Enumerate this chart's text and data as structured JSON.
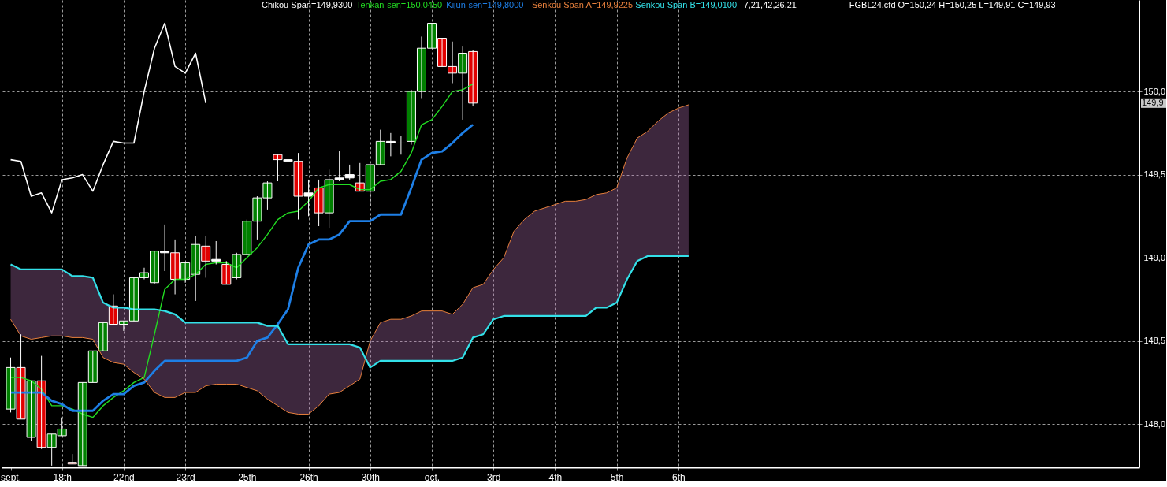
{
  "chart_data": {
    "type": "candlestick",
    "categories": [
      "sept.",
      null,
      null,
      null,
      null,
      "18th",
      null,
      null,
      null,
      null,
      null,
      "22nd",
      null,
      null,
      null,
      null,
      null,
      "23rd",
      null,
      null,
      null,
      null,
      null,
      "25th",
      null,
      null,
      null,
      null,
      null,
      "26th",
      null,
      null,
      null,
      null,
      null,
      "30th",
      null,
      null,
      null,
      null,
      null,
      "oct.",
      null,
      null,
      null,
      null,
      null,
      "3rd",
      null,
      null,
      null,
      null,
      null,
      "4th",
      null,
      null,
      null,
      null,
      null,
      "5th",
      null,
      null,
      null,
      null,
      null,
      "6th",
      null,
      null,
      null,
      null,
      null,
      null,
      null,
      null,
      null,
      null,
      null,
      null,
      null,
      null,
      null,
      null,
      null,
      null,
      null,
      null,
      null,
      null,
      null,
      null,
      null,
      null,
      null,
      null,
      null,
      null,
      null,
      null,
      null,
      null,
      null,
      null,
      null,
      null,
      null,
      null,
      null,
      null,
      null,
      null
    ],
    "ohlc": [
      [
        148.09,
        148.4,
        148.07,
        148.34
      ],
      [
        148.34,
        148.54,
        148.03,
        148.03
      ],
      [
        147.92,
        148.26,
        147.9,
        148.26
      ],
      [
        148.26,
        148.41,
        147.85,
        147.86
      ],
      [
        147.86,
        147.94,
        147.75,
        147.94
      ],
      [
        147.93,
        148.04,
        147.93,
        147.97
      ],
      [
        147.77,
        147.82,
        147.76,
        147.76
      ],
      [
        147.75,
        148.25,
        147.75,
        148.25
      ],
      [
        148.25,
        148.44,
        148.25,
        148.44
      ],
      [
        148.44,
        148.61,
        148.44,
        148.61
      ],
      [
        148.71,
        148.78,
        148.6,
        148.6
      ],
      [
        148.6,
        148.62,
        148.56,
        148.62
      ],
      [
        148.62,
        148.88,
        148.62,
        148.88
      ],
      [
        148.88,
        148.94,
        148.87,
        148.91
      ],
      [
        148.85,
        149.04,
        148.84,
        149.04
      ],
      [
        149.04,
        149.2,
        148.92,
        149.03
      ],
      [
        149.03,
        149.11,
        148.78,
        148.87
      ],
      [
        148.87,
        148.97,
        148.85,
        148.97
      ],
      [
        148.9,
        149.13,
        148.74,
        149.08
      ],
      [
        149.07,
        149.13,
        148.88,
        148.98
      ],
      [
        148.98,
        149.1,
        148.96,
        148.99
      ],
      [
        148.96,
        148.98,
        148.84,
        148.84
      ],
      [
        148.88,
        149.03,
        148.87,
        149.02
      ],
      [
        149.02,
        149.23,
        149.02,
        149.22
      ],
      [
        149.22,
        149.37,
        149.11,
        149.36
      ],
      [
        149.36,
        149.46,
        149.29,
        149.45
      ],
      [
        149.62,
        149.62,
        149.46,
        149.59
      ],
      [
        149.59,
        149.69,
        149.46,
        149.58
      ],
      [
        149.58,
        149.63,
        149.23,
        149.37
      ],
      [
        149.37,
        149.47,
        149.25,
        149.39
      ],
      [
        149.42,
        149.47,
        149.19,
        149.27
      ],
      [
        149.27,
        149.53,
        149.18,
        149.47
      ],
      [
        149.47,
        149.64,
        149.46,
        149.48
      ],
      [
        149.48,
        149.56,
        149.47,
        149.5
      ],
      [
        149.45,
        149.57,
        149.4,
        149.4
      ],
      [
        149.4,
        149.56,
        149.31,
        149.56
      ],
      [
        149.56,
        149.77,
        149.56,
        149.7
      ],
      [
        149.7,
        149.75,
        149.61,
        149.69
      ],
      [
        149.69,
        149.73,
        149.62,
        149.69
      ],
      [
        149.7,
        150.01,
        149.68,
        150.0
      ],
      [
        150.0,
        150.33,
        149.96,
        150.26
      ],
      [
        150.26,
        150.41,
        150.26,
        150.41
      ],
      [
        150.32,
        150.32,
        150.15,
        150.15
      ],
      [
        150.15,
        150.3,
        150.05,
        150.11
      ],
      [
        150.11,
        150.27,
        149.83,
        150.23
      ],
      [
        150.24,
        150.25,
        149.91,
        149.93
      ],
      null,
      null,
      null,
      null,
      null,
      null,
      null,
      null,
      null,
      null,
      null,
      null,
      null,
      null,
      null,
      null,
      null,
      null,
      null,
      null,
      null,
      null,
      null,
      null,
      null,
      null,
      null,
      null,
      null,
      null,
      null,
      null,
      null,
      null,
      null,
      null,
      null,
      null,
      null,
      null,
      null,
      null,
      null,
      null,
      null,
      null,
      null,
      null,
      null,
      null,
      null,
      null,
      null,
      null,
      null,
      null,
      null,
      null,
      null,
      null,
      null,
      null,
      null,
      null
    ],
    "colors": [
      "#008000",
      "#e00000",
      "#008000",
      "#e00000",
      "#008000",
      "#008000",
      "#e00000",
      "#008000",
      "#008000",
      "#008000",
      "#e00000",
      "#008000",
      "#008000",
      "#008000",
      "#008000",
      "#ffffff",
      "#e00000",
      "#008000",
      "#008000",
      "#e00000",
      "#ffffff",
      "#e00000",
      "#008000",
      "#008000",
      "#008000",
      "#008000",
      "#e00000",
      "#ffffff",
      "#e00000",
      "#ffffff",
      "#e00000",
      "#008000",
      "#ffffff",
      "#ffffff",
      "#e00000",
      "#008000",
      "#008000",
      "#ffffff",
      "#ffffff",
      "#008000",
      "#008000",
      "#008000",
      "#e00000",
      "#e00000",
      "#008000",
      "#e00000",
      null,
      null,
      null,
      null,
      null,
      null,
      null,
      null,
      null,
      null,
      null,
      null,
      null,
      null,
      null,
      null,
      null,
      null,
      null,
      null,
      null,
      null,
      null,
      null,
      null,
      null,
      null,
      null,
      null,
      null,
      null,
      null,
      null,
      null,
      null,
      null,
      null,
      null,
      null,
      null,
      null,
      null,
      null,
      null,
      null,
      null,
      null,
      null,
      null,
      null,
      null,
      null,
      null,
      null,
      null,
      null,
      null,
      null,
      null,
      null,
      null,
      null,
      null,
      null
    ],
    "series": [
      {
        "name": "Chikou Span=149,9300",
        "type": "line",
        "color": "#ffffff",
        "values": [
          149.59,
          149.58,
          149.37,
          149.39,
          149.27,
          149.47,
          149.48,
          149.5,
          149.4,
          149.56,
          149.7,
          149.69,
          149.69,
          150.0,
          150.26,
          150.41,
          150.15,
          150.11,
          150.23,
          149.93,
          null,
          null,
          null,
          null,
          null,
          null,
          null,
          null,
          null,
          null,
          null,
          null,
          null,
          null,
          null,
          null,
          null,
          null,
          null,
          null,
          null,
          null,
          null,
          null,
          null,
          null,
          null,
          null,
          null,
          null,
          null,
          null,
          null,
          null,
          null,
          null,
          null,
          null,
          null,
          null,
          null,
          null,
          null,
          null,
          null,
          null,
          null,
          null,
          null,
          null,
          null,
          null,
          null,
          null,
          null,
          null,
          null,
          null,
          null,
          null,
          null,
          null,
          null,
          null,
          null,
          null,
          null,
          null,
          null,
          null,
          null,
          null,
          null,
          null,
          null,
          null,
          null,
          null,
          null,
          null,
          null,
          null,
          null,
          null,
          null,
          null,
          null,
          null,
          null,
          null
        ]
      },
      {
        "name": "Tenkan-sen=150,0450",
        "type": "line",
        "color": "#22dd22",
        "values": [
          148.28,
          148.28,
          148.26,
          148.21,
          148.11,
          148.11,
          148.09,
          148.06,
          148.04,
          148.11,
          148.16,
          148.2,
          148.25,
          148.28,
          148.54,
          148.81,
          148.87,
          148.87,
          148.9,
          148.96,
          148.97,
          148.97,
          148.94,
          149.0,
          149.06,
          149.14,
          149.23,
          149.27,
          149.28,
          149.34,
          149.42,
          149.44,
          149.44,
          149.44,
          149.41,
          149.41,
          149.46,
          149.47,
          149.52,
          149.63,
          149.8,
          149.83,
          149.91,
          150.0,
          150.01,
          150.045,
          null,
          null,
          null,
          null,
          null,
          null,
          null,
          null,
          null,
          null,
          null,
          null,
          null,
          null,
          null,
          null,
          null,
          null,
          null,
          null,
          null,
          null,
          null,
          null,
          null,
          null,
          null,
          null,
          null,
          null,
          null,
          null,
          null,
          null,
          null,
          null,
          null,
          null,
          null,
          null,
          null,
          null,
          null,
          null,
          null,
          null,
          null,
          null,
          null,
          null,
          null,
          null,
          null,
          null,
          null,
          null,
          null,
          null,
          null,
          null,
          null,
          null,
          null,
          null
        ]
      },
      {
        "name": "Kijun-sen=149,8000",
        "type": "line",
        "color": "#1e7fe6",
        "values": [
          148.19,
          148.19,
          148.19,
          148.19,
          148.14,
          148.12,
          148.08,
          148.08,
          148.08,
          148.14,
          148.18,
          148.18,
          148.23,
          148.25,
          148.32,
          148.38,
          148.38,
          148.38,
          148.38,
          148.38,
          148.38,
          148.38,
          148.38,
          148.4,
          148.5,
          148.52,
          148.6,
          148.69,
          148.94,
          149.08,
          149.11,
          149.11,
          149.14,
          149.22,
          149.22,
          149.22,
          149.26,
          149.26,
          149.26,
          149.42,
          149.59,
          149.63,
          149.64,
          149.69,
          149.75,
          149.8,
          null,
          null,
          null,
          null,
          null,
          null,
          null,
          null,
          null,
          null,
          null,
          null,
          null,
          null,
          null,
          null,
          null,
          null,
          null,
          null,
          null,
          null,
          null,
          null,
          null,
          null,
          null,
          null,
          null,
          null,
          null,
          null,
          null,
          null,
          null,
          null,
          null,
          null,
          null,
          null,
          null,
          null,
          null,
          null,
          null,
          null,
          null,
          null,
          null,
          null,
          null,
          null,
          null,
          null,
          null,
          null,
          null,
          null,
          null,
          null,
          null,
          null,
          null,
          null
        ]
      },
      {
        "name": "Senkou Span A=149,9225",
        "type": "line",
        "color": "#e8803c",
        "lower": [
          148.96,
          148.93,
          148.93,
          148.93,
          148.93,
          148.93,
          148.89,
          148.89,
          148.88,
          148.73,
          148.7,
          148.7,
          148.69,
          148.69,
          148.69,
          148.68,
          148.66,
          148.61,
          148.61,
          148.61,
          148.61,
          148.61,
          148.61,
          148.61,
          148.61,
          148.59,
          148.59,
          148.48,
          148.48,
          148.48,
          148.48,
          148.48,
          148.48,
          148.48,
          148.46,
          148.34,
          148.38,
          148.38,
          148.38,
          148.38,
          148.38,
          148.38,
          148.38,
          148.38,
          148.4,
          148.52,
          148.54,
          148.63,
          148.65,
          148.65,
          148.65,
          148.65,
          148.65,
          148.65,
          148.65,
          148.65,
          148.65,
          148.7,
          148.7,
          148.73,
          148.87,
          148.98,
          149.01,
          149.01,
          149.01,
          149.01,
          149.01,
          null,
          null,
          null,
          null,
          null,
          null,
          null,
          null,
          null,
          null,
          null,
          null,
          null,
          null,
          null,
          null,
          null,
          null,
          null,
          null,
          null,
          null,
          null,
          null,
          null,
          null,
          null,
          null,
          null,
          null,
          null,
          null,
          null,
          null,
          null,
          null,
          null,
          null,
          null,
          null,
          null,
          null,
          null
        ],
        "upper": [
          148.63,
          148.53,
          148.51,
          148.52,
          148.53,
          148.53,
          148.52,
          148.52,
          148.51,
          148.4,
          148.37,
          148.36,
          148.31,
          148.27,
          148.19,
          148.16,
          148.16,
          148.19,
          148.19,
          148.23,
          148.24,
          148.24,
          148.24,
          148.22,
          148.2,
          148.15,
          148.11,
          148.07,
          148.06,
          148.06,
          148.11,
          148.18,
          148.19,
          148.23,
          148.27,
          148.5,
          148.61,
          148.63,
          148.63,
          148.65,
          148.68,
          148.68,
          148.68,
          148.66,
          148.72,
          148.82,
          148.84,
          148.93,
          149.0,
          149.16,
          149.23,
          149.28,
          149.3,
          149.32,
          149.34,
          149.34,
          149.35,
          149.38,
          149.39,
          149.42,
          149.6,
          149.72,
          149.76,
          149.82,
          149.87,
          149.9,
          149.92,
          null,
          null,
          null,
          null,
          null,
          null,
          null,
          null,
          null,
          null,
          null,
          null,
          null,
          null,
          null,
          null,
          null,
          null,
          null,
          null,
          null,
          null,
          null,
          null,
          null,
          null,
          null,
          null,
          null,
          null,
          null,
          null,
          null,
          null,
          null,
          null,
          null,
          null,
          null,
          null,
          null,
          null,
          null
        ],
        "values": [
          148.63,
          148.53,
          148.51,
          148.52,
          148.53,
          148.53,
          148.52,
          148.52,
          148.51,
          148.4,
          148.37,
          148.36,
          148.31,
          148.27,
          148.19,
          148.16,
          148.16,
          148.19,
          148.19,
          148.23,
          148.24,
          148.24,
          148.24,
          148.22,
          148.2,
          148.15,
          148.11,
          148.07,
          148.06,
          148.06,
          148.11,
          148.18,
          148.19,
          148.23,
          148.27,
          148.5,
          148.61,
          148.63,
          148.63,
          148.65,
          148.68,
          148.68,
          148.68,
          148.66,
          148.72,
          148.82,
          148.84,
          148.93,
          149.0,
          149.16,
          149.23,
          149.28,
          149.3,
          149.32,
          149.34,
          149.34,
          149.35,
          149.38,
          149.39,
          149.42,
          149.6,
          149.72,
          149.76,
          149.82,
          149.87,
          149.9,
          149.92,
          null,
          null,
          null,
          null,
          null,
          null,
          null,
          null,
          null,
          null,
          null,
          null,
          null,
          null,
          null,
          null,
          null,
          null,
          null,
          null,
          null,
          null,
          null,
          null,
          null,
          null,
          null,
          null,
          null,
          null,
          null,
          null,
          null,
          null,
          null,
          null,
          null,
          null,
          null,
          null,
          null,
          null,
          null
        ]
      },
      {
        "name": "Senkou Span B=149,0100",
        "type": "line",
        "color": "#33e0e8",
        "values": [
          148.96,
          148.93,
          148.93,
          148.93,
          148.93,
          148.93,
          148.89,
          148.89,
          148.88,
          148.73,
          148.7,
          148.7,
          148.69,
          148.69,
          148.69,
          148.68,
          148.66,
          148.61,
          148.61,
          148.61,
          148.61,
          148.61,
          148.61,
          148.61,
          148.61,
          148.59,
          148.59,
          148.48,
          148.48,
          148.48,
          148.48,
          148.48,
          148.48,
          148.48,
          148.46,
          148.34,
          148.38,
          148.38,
          148.38,
          148.38,
          148.38,
          148.38,
          148.38,
          148.38,
          148.4,
          148.52,
          148.54,
          148.63,
          148.65,
          148.65,
          148.65,
          148.65,
          148.65,
          148.65,
          148.65,
          148.65,
          148.65,
          148.7,
          148.7,
          148.73,
          148.87,
          148.98,
          149.01,
          149.01,
          149.01,
          149.01,
          149.01,
          null,
          null,
          null,
          null,
          null,
          null,
          null,
          null,
          null,
          null,
          null,
          null,
          null,
          null,
          null,
          null,
          null,
          null,
          null,
          null,
          null,
          null,
          null,
          null,
          null,
          null,
          null,
          null,
          null,
          null,
          null,
          null,
          null,
          null,
          null,
          null,
          null,
          null,
          null,
          null,
          null,
          null,
          null
        ]
      }
    ],
    "annotations": [
      "7,21,42,26,21",
      "FGBL24.cfd O=150,24 H=150,25 L=149,91 C=149,93",
      {
        "text": "149,9",
        "y": 149.93
      }
    ],
    "ylim": [
      147.74,
      150.55
    ],
    "yticks": [
      {
        "value": 148,
        "label": "148,0"
      },
      {
        "value": 148.5,
        "label": "148,5"
      },
      {
        "value": 149,
        "label": "149,0"
      },
      {
        "value": 149.5,
        "label": "149,5"
      },
      {
        "value": 150,
        "label": "150,0"
      }
    ],
    "grid": true,
    "legend": "top"
  }
}
